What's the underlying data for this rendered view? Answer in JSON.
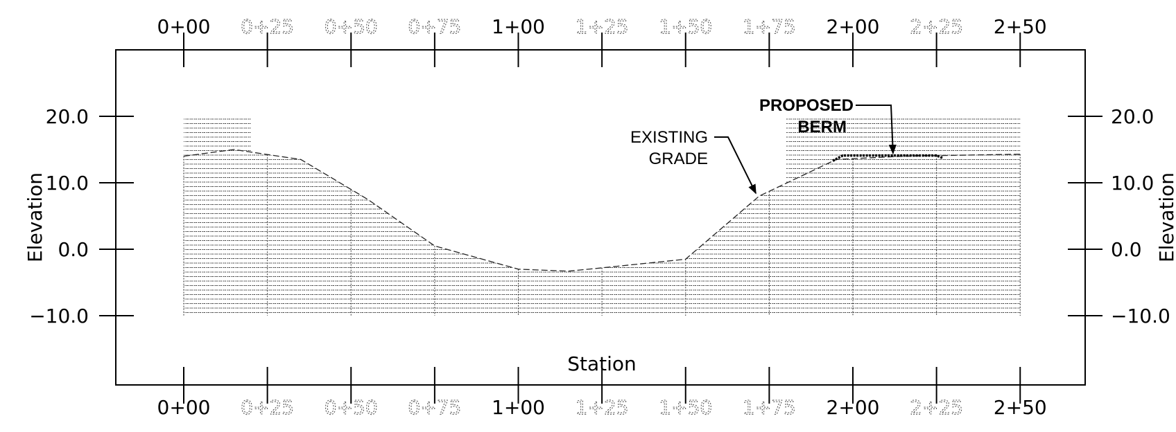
{
  "chart_data": {
    "type": "area",
    "xlabel": "Station",
    "ylabel": "Elevation",
    "xlim": [
      -40,
      290
    ],
    "ylim": [
      -20,
      30
    ],
    "x_ticks": [
      {
        "value": 0,
        "label": "0+00",
        "major": true
      },
      {
        "value": 25,
        "label": "0+25",
        "major": false
      },
      {
        "value": 50,
        "label": "0+50",
        "major": false
      },
      {
        "value": 75,
        "label": "0+75",
        "major": false
      },
      {
        "value": 100,
        "label": "1+00",
        "major": true
      },
      {
        "value": 125,
        "label": "1+25",
        "major": false
      },
      {
        "value": 150,
        "label": "1+50",
        "major": false
      },
      {
        "value": 175,
        "label": "1+75",
        "major": false
      },
      {
        "value": 200,
        "label": "2+00",
        "major": true
      },
      {
        "value": 225,
        "label": "2+25",
        "major": false
      },
      {
        "value": 250,
        "label": "2+50",
        "major": true
      }
    ],
    "y_ticks": [
      {
        "value": 20,
        "label": "20.0"
      },
      {
        "value": 10,
        "label": "10.0"
      },
      {
        "value": 0,
        "label": "0.0"
      },
      {
        "value": -10,
        "label": "−10.0"
      }
    ],
    "existing_grade": {
      "x": [
        0,
        15,
        35,
        55,
        75,
        100,
        115,
        125,
        150,
        172,
        195,
        215,
        250
      ],
      "y": [
        14,
        15,
        13.5,
        7.5,
        0.5,
        -3,
        -3.3,
        -2.8,
        -1.5,
        8,
        13.5,
        14,
        14.3
      ]
    },
    "proposed_berm": {
      "x": [
        194,
        197,
        225,
        227
      ],
      "y": [
        13.3,
        14.1,
        14.1,
        13.7
      ]
    },
    "hatch_regions": [
      {
        "x_start": 0,
        "x_end": 20,
        "top": 20,
        "bottom": -10
      },
      {
        "x_start": 20,
        "x_end": 180,
        "top": "grade",
        "bottom": -10
      },
      {
        "x_start": 180,
        "x_end": 250,
        "top": 20,
        "bottom": -10
      }
    ],
    "annotations": [
      {
        "lines": [
          "EXISTING",
          "GRADE"
        ],
        "bold": false,
        "arrow_to": {
          "x": 171,
          "y": 8
        }
      },
      {
        "lines": [
          "PROPOSED",
          "BERM"
        ],
        "bold": true,
        "arrow_to": {
          "x": 212,
          "y": 14
        }
      }
    ]
  }
}
